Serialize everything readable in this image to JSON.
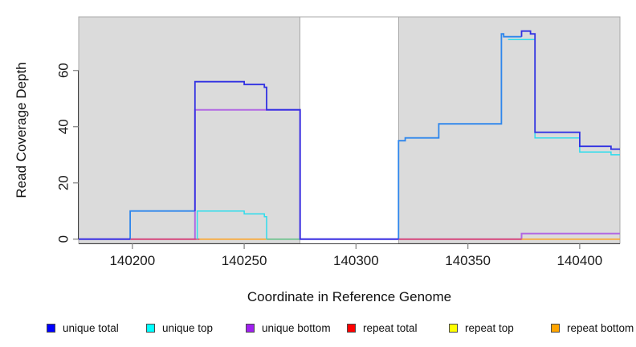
{
  "colors": {
    "region_fill": "#DBDBDB",
    "region_border": "#A8A8A8",
    "axis": "#3F3F3F",
    "tick": "#909090",
    "swatch_border": "#4A4A4A"
  },
  "legend": {
    "items": [
      {
        "label": "unique total",
        "color": "#0000FF"
      },
      {
        "label": "unique top",
        "color": "#00FFFF"
      },
      {
        "label": "unique bottom",
        "color": "#A020F0"
      },
      {
        "label": "repeat total",
        "color": "#FF0000"
      },
      {
        "label": "repeat top",
        "color": "#FFFF00"
      },
      {
        "label": "repeat bottom",
        "color": "#FFA500"
      }
    ]
  },
  "chart_data": {
    "type": "line",
    "title": "",
    "xlabel": "Coordinate in Reference Genome",
    "ylabel": "Read Coverage Depth",
    "xlim": [
      140176,
      140418
    ],
    "ylim": [
      0,
      76
    ],
    "x_ticks": [
      140200,
      140250,
      140300,
      140350,
      140400
    ],
    "y_ticks": [
      0,
      20,
      40,
      60
    ],
    "grid": false,
    "legend_position": "bottom",
    "background_regions": [
      {
        "x0": 140176,
        "x1": 140275
      },
      {
        "x0": 140319,
        "x1": 140418
      }
    ],
    "gap_region": {
      "x0": 140275,
      "x1": 140319
    },
    "series": [
      {
        "name": "unique total",
        "color": "#0000FF",
        "step": "after",
        "points": [
          [
            140176,
            0
          ],
          [
            140199,
            10
          ],
          [
            140228,
            56
          ],
          [
            140250,
            55
          ],
          [
            140259,
            54
          ],
          [
            140260,
            46
          ],
          [
            140275,
            0
          ],
          [
            140319,
            35
          ],
          [
            140322,
            36
          ],
          [
            140337,
            41
          ],
          [
            140365,
            73
          ],
          [
            140366,
            72
          ],
          [
            140374,
            74
          ],
          [
            140378,
            73
          ],
          [
            140380,
            38
          ],
          [
            140400,
            33
          ],
          [
            140414,
            32
          ],
          [
            140418,
            32
          ]
        ]
      },
      {
        "name": "unique top",
        "color": "#00FFFF",
        "step": "after",
        "points": [
          [
            140176,
            0
          ],
          [
            140229,
            10
          ],
          [
            140250,
            9
          ],
          [
            140259,
            8
          ],
          [
            140260,
            0
          ],
          [
            140319,
            35
          ],
          [
            140322,
            36
          ],
          [
            140337,
            41
          ],
          [
            140365,
            73
          ],
          [
            140366,
            72
          ],
          [
            140374,
            72
          ],
          [
            140378,
            71
          ],
          [
            140380,
            36
          ],
          [
            140400,
            31
          ],
          [
            140414,
            30
          ],
          [
            140418,
            30
          ]
        ]
      },
      {
        "name": "unique bottom",
        "color": "#A020F0",
        "step": "after",
        "points": [
          [
            140176,
            0
          ],
          [
            140228,
            46
          ],
          [
            140275,
            0
          ],
          [
            140374,
            2
          ],
          [
            140418,
            2
          ]
        ]
      },
      {
        "name": "repeat total",
        "color": "#FF0000",
        "step": "after",
        "points": [
          [
            140176,
            0
          ],
          [
            140418,
            0
          ]
        ]
      },
      {
        "name": "repeat top",
        "color": "#FFFF00",
        "step": "after",
        "points": [
          [
            140176,
            0
          ],
          [
            140418,
            0
          ]
        ]
      },
      {
        "name": "repeat bottom",
        "color": "#FFA500",
        "step": "after",
        "points": [
          [
            140176,
            0
          ],
          [
            140418,
            0
          ]
        ]
      }
    ],
    "render": [
      {
        "name": "unique-bottom",
        "color": "#B269E3",
        "w": 2,
        "paths": [
          [
            [
              140176,
              0
            ],
            [
              140228,
              0
            ],
            [
              140228,
              46
            ],
            [
              140275,
              46
            ],
            [
              140275,
              0
            ],
            [
              140374,
              0
            ],
            [
              140374,
              2
            ],
            [
              140418,
              2
            ]
          ]
        ]
      },
      {
        "name": "repeat-total",
        "color": "#E03A5C",
        "w": 1.5,
        "paths": [
          [
            [
              140176,
              0
            ],
            [
              140275,
              0
            ]
          ],
          [
            [
              140319,
              0
            ],
            [
              140418,
              0
            ]
          ]
        ]
      },
      {
        "name": "repeat-top",
        "color": "#F5E626",
        "w": 1.5,
        "paths": [
          [
            [
              140230,
              0
            ],
            [
              140275,
              0
            ]
          ]
        ]
      },
      {
        "name": "repeat-bottom",
        "color": "#FFA01E",
        "w": 1.5,
        "paths": [
          [
            [
              140230,
              0
            ],
            [
              140275,
              0
            ]
          ],
          [
            [
              140374,
              0
            ],
            [
              140418,
              0
            ]
          ]
        ]
      },
      {
        "name": "top-bottom-overlap",
        "color": "#5CBE82",
        "w": 1.5,
        "paths": [
          [
            [
              140260,
              0
            ],
            [
              140275,
              0
            ]
          ]
        ]
      },
      {
        "name": "unique-top",
        "color": "#2FDCEC",
        "w": 1.5,
        "paths": [
          [
            [
              140229,
              0
            ],
            [
              140229,
              10
            ],
            [
              140250,
              10
            ],
            [
              140250,
              9
            ],
            [
              140259,
              9
            ],
            [
              140259,
              8
            ],
            [
              140260,
              8
            ],
            [
              140260,
              0
            ]
          ],
          [
            [
              140368,
              71
            ],
            [
              140380,
              71
            ],
            [
              140380,
              36
            ],
            [
              140400,
              36
            ],
            [
              140400,
              31
            ],
            [
              140414,
              31
            ],
            [
              140414,
              30
            ],
            [
              140418,
              30
            ]
          ]
        ]
      },
      {
        "name": "unique-total-coincident",
        "color": "#2E86EC",
        "w": 1.8,
        "paths": [
          [
            [
              140199,
              0
            ],
            [
              140199,
              10
            ],
            [
              140228,
              10
            ]
          ],
          [
            [
              140319,
              0
            ],
            [
              140319,
              35
            ],
            [
              140322,
              35
            ],
            [
              140322,
              36
            ],
            [
              140337,
              36
            ],
            [
              140337,
              41
            ],
            [
              140365,
              41
            ],
            [
              140365,
              73
            ],
            [
              140366,
              73
            ],
            [
              140366,
              72
            ],
            [
              140374,
              72
            ]
          ]
        ]
      },
      {
        "name": "unique-total",
        "color": "#3232E2",
        "w": 1.8,
        "paths": [
          [
            [
              140176,
              0
            ],
            [
              140199,
              0
            ]
          ],
          [
            [
              140228,
              10
            ],
            [
              140228,
              56
            ],
            [
              140250,
              56
            ],
            [
              140250,
              55
            ],
            [
              140259,
              55
            ],
            [
              140259,
              54
            ],
            [
              140260,
              54
            ],
            [
              140260,
              46
            ],
            [
              140275,
              46
            ],
            [
              140275,
              0
            ],
            [
              140319,
              0
            ]
          ],
          [
            [
              140374,
              72
            ],
            [
              140374,
              74
            ],
            [
              140378,
              74
            ],
            [
              140378,
              73
            ],
            [
              140380,
              73
            ],
            [
              140380,
              38
            ],
            [
              140400,
              38
            ],
            [
              140400,
              33
            ],
            [
              140414,
              33
            ],
            [
              140414,
              32
            ],
            [
              140418,
              32
            ]
          ]
        ]
      }
    ]
  }
}
